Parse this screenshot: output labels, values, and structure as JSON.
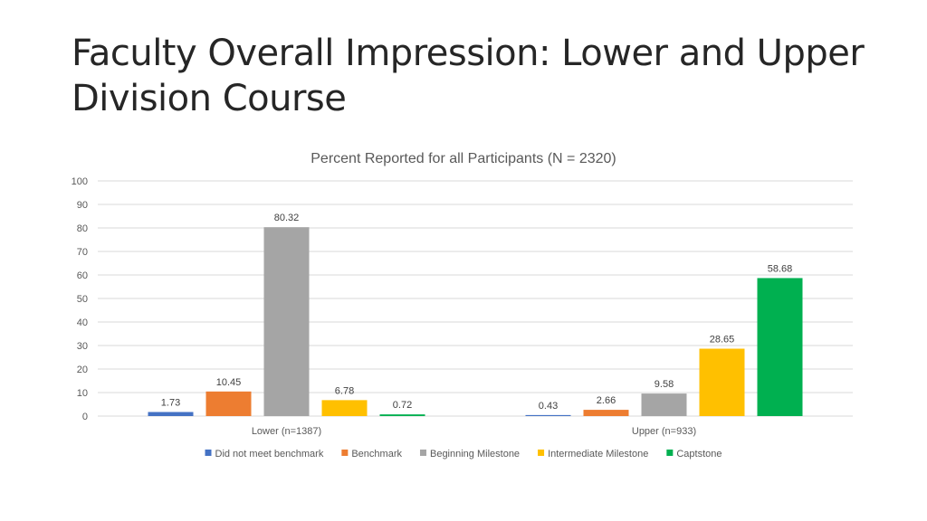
{
  "slide": {
    "title": "Faculty Overall Impression: Lower and Upper Division Course"
  },
  "chart_data": {
    "type": "bar",
    "title": "Percent Reported for all Participants (N = 2320)",
    "categories": [
      "Lower (n=1387)",
      "Upper (n=933)"
    ],
    "series": [
      {
        "name": "Did not meet benchmark",
        "color": "#4472C4",
        "values": [
          1.73,
          0.43
        ]
      },
      {
        "name": "Benchmark",
        "color": "#ED7D31",
        "values": [
          10.45,
          2.66
        ]
      },
      {
        "name": "Beginning Milestone",
        "color": "#A5A5A5",
        "values": [
          80.32,
          9.58
        ]
      },
      {
        "name": "Intermediate Milestone",
        "color": "#FFC000",
        "values": [
          6.78,
          28.65
        ]
      },
      {
        "name": "Captstone",
        "color": "#00B050",
        "values": [
          0.72,
          58.68
        ]
      }
    ],
    "ylim": [
      0,
      100
    ],
    "yticks": [
      0,
      10,
      20,
      30,
      40,
      50,
      60,
      70,
      80,
      90,
      100
    ],
    "grid": true,
    "legend": "bottom"
  }
}
